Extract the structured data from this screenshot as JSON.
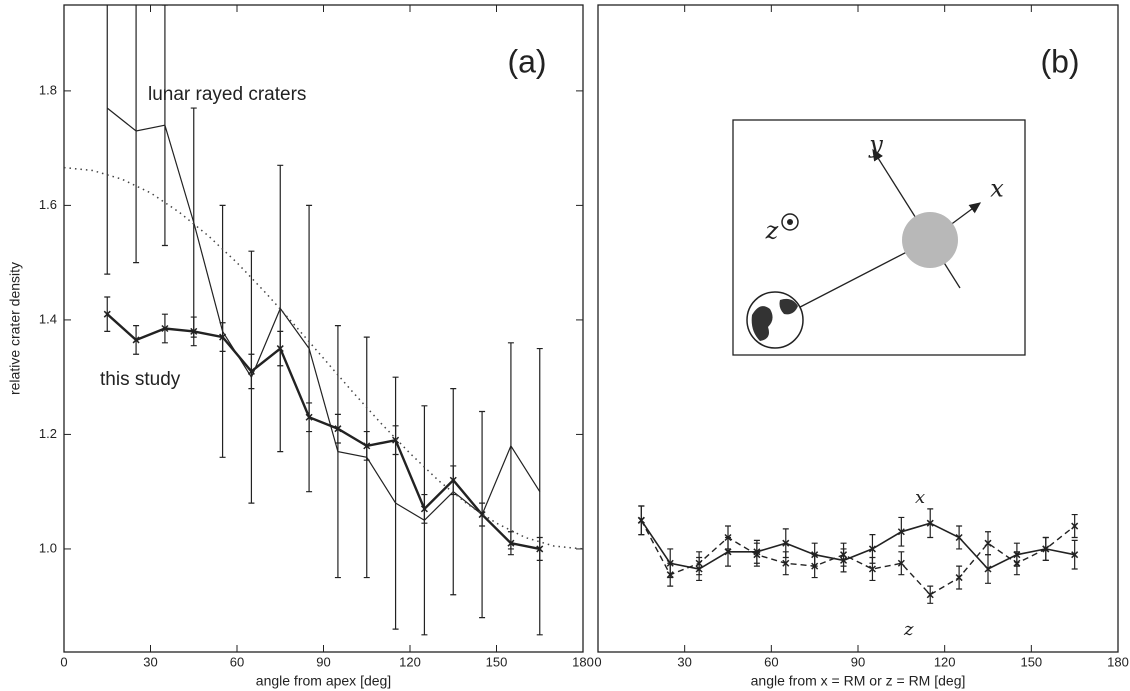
{
  "chart_data": [
    {
      "type": "line",
      "title": "(a)",
      "xlabel": "angle from apex [deg]",
      "ylabel": "relative crater density",
      "xlim": [
        0,
        180
      ],
      "xticks": [
        0,
        30,
        60,
        90,
        120,
        150,
        180
      ],
      "ylim": [
        0.82,
        1.95
      ],
      "yticks": [
        {
          "value": 1,
          "label": "1.0"
        },
        1.2,
        1.4,
        1.6,
        1.8
      ],
      "series": [
        {
          "name": "lunar rayed craters",
          "color": "#222",
          "width": 1.2,
          "dash": "solid",
          "x": [
            15,
            25,
            35,
            45,
            55,
            65,
            75,
            85,
            95,
            105,
            115,
            125,
            135,
            145,
            155,
            165
          ],
          "values": [
            1.77,
            1.73,
            1.74,
            1.57,
            1.38,
            1.3,
            1.42,
            1.35,
            1.17,
            1.16,
            1.08,
            1.05,
            1.1,
            1.06,
            1.18,
            1.1
          ],
          "errors": [
            0.29,
            0.23,
            0.21,
            0.2,
            0.22,
            0.22,
            0.25,
            0.25,
            0.22,
            0.21,
            0.22,
            0.2,
            0.18,
            0.18,
            0.18,
            0.25
          ]
        },
        {
          "name": "this study",
          "color": "#222",
          "width": 2.4,
          "dash": "solid",
          "marker": "x",
          "x": [
            15,
            25,
            35,
            45,
            55,
            65,
            75,
            85,
            95,
            105,
            115,
            125,
            135,
            145,
            155,
            165
          ],
          "values": [
            1.41,
            1.365,
            1.385,
            1.38,
            1.37,
            1.31,
            1.35,
            1.23,
            1.21,
            1.18,
            1.19,
            1.07,
            1.12,
            1.06,
            1.01,
            1.0
          ],
          "errors": [
            0.03,
            0.025,
            0.025,
            0.025,
            0.025,
            0.03,
            0.03,
            0.025,
            0.025,
            0.025,
            0.025,
            0.025,
            0.025,
            0.02,
            0.02,
            0.02
          ]
        },
        {
          "color": "#444",
          "width": 1.5,
          "dash": "dotted",
          "x": [
            0,
            10,
            20,
            30,
            40,
            50,
            60,
            70,
            80,
            90,
            100,
            110,
            120,
            130,
            140,
            150,
            160,
            170,
            180
          ],
          "values": [
            1.666,
            1.661,
            1.646,
            1.622,
            1.588,
            1.547,
            1.5,
            1.447,
            1.391,
            1.333,
            1.275,
            1.219,
            1.167,
            1.119,
            1.078,
            1.045,
            1.02,
            1.005,
            1.0
          ]
        }
      ]
    },
    {
      "type": "line",
      "title": "(b)",
      "xlabel": "angle from x = RM or z = RM  [deg]",
      "xlim": [
        0,
        180
      ],
      "xticks": [
        0,
        30,
        60,
        90,
        120,
        150,
        180
      ],
      "ylim": [
        0.82,
        1.95
      ],
      "series": [
        {
          "name": "x",
          "color": "#222",
          "width": 1.6,
          "dash": "solid",
          "marker": "x",
          "x": [
            15,
            25,
            35,
            45,
            55,
            65,
            75,
            85,
            95,
            105,
            115,
            125,
            135,
            145,
            155,
            165
          ],
          "values": [
            1.05,
            0.975,
            0.965,
            0.995,
            0.995,
            1.01,
            0.99,
            0.98,
            1.0,
            1.03,
            1.045,
            1.02,
            0.965,
            0.99,
            1.0,
            0.99
          ],
          "errors": [
            0.025,
            0.025,
            0.02,
            0.025,
            0.02,
            0.025,
            0.02,
            0.02,
            0.025,
            0.025,
            0.025,
            0.02,
            0.025,
            0.02,
            0.02,
            0.025
          ]
        },
        {
          "name": "z",
          "color": "#222",
          "width": 1.4,
          "dash": "dashed",
          "marker": "x",
          "x": [
            15,
            25,
            35,
            45,
            55,
            65,
            75,
            85,
            95,
            105,
            115,
            125,
            135,
            145,
            155,
            165
          ],
          "values": [
            1.05,
            0.955,
            0.975,
            1.02,
            0.99,
            0.975,
            0.97,
            0.99,
            0.965,
            0.975,
            0.92,
            0.95,
            1.01,
            0.975,
            1.0,
            1.04
          ],
          "errors": [
            0.025,
            0.02,
            0.02,
            0.02,
            0.02,
            0.02,
            0.02,
            0.02,
            0.02,
            0.02,
            0.015,
            0.02,
            0.02,
            0.02,
            0.02,
            0.02
          ]
        }
      ],
      "inset_labels": [
        "y",
        "x",
        "z"
      ]
    }
  ]
}
